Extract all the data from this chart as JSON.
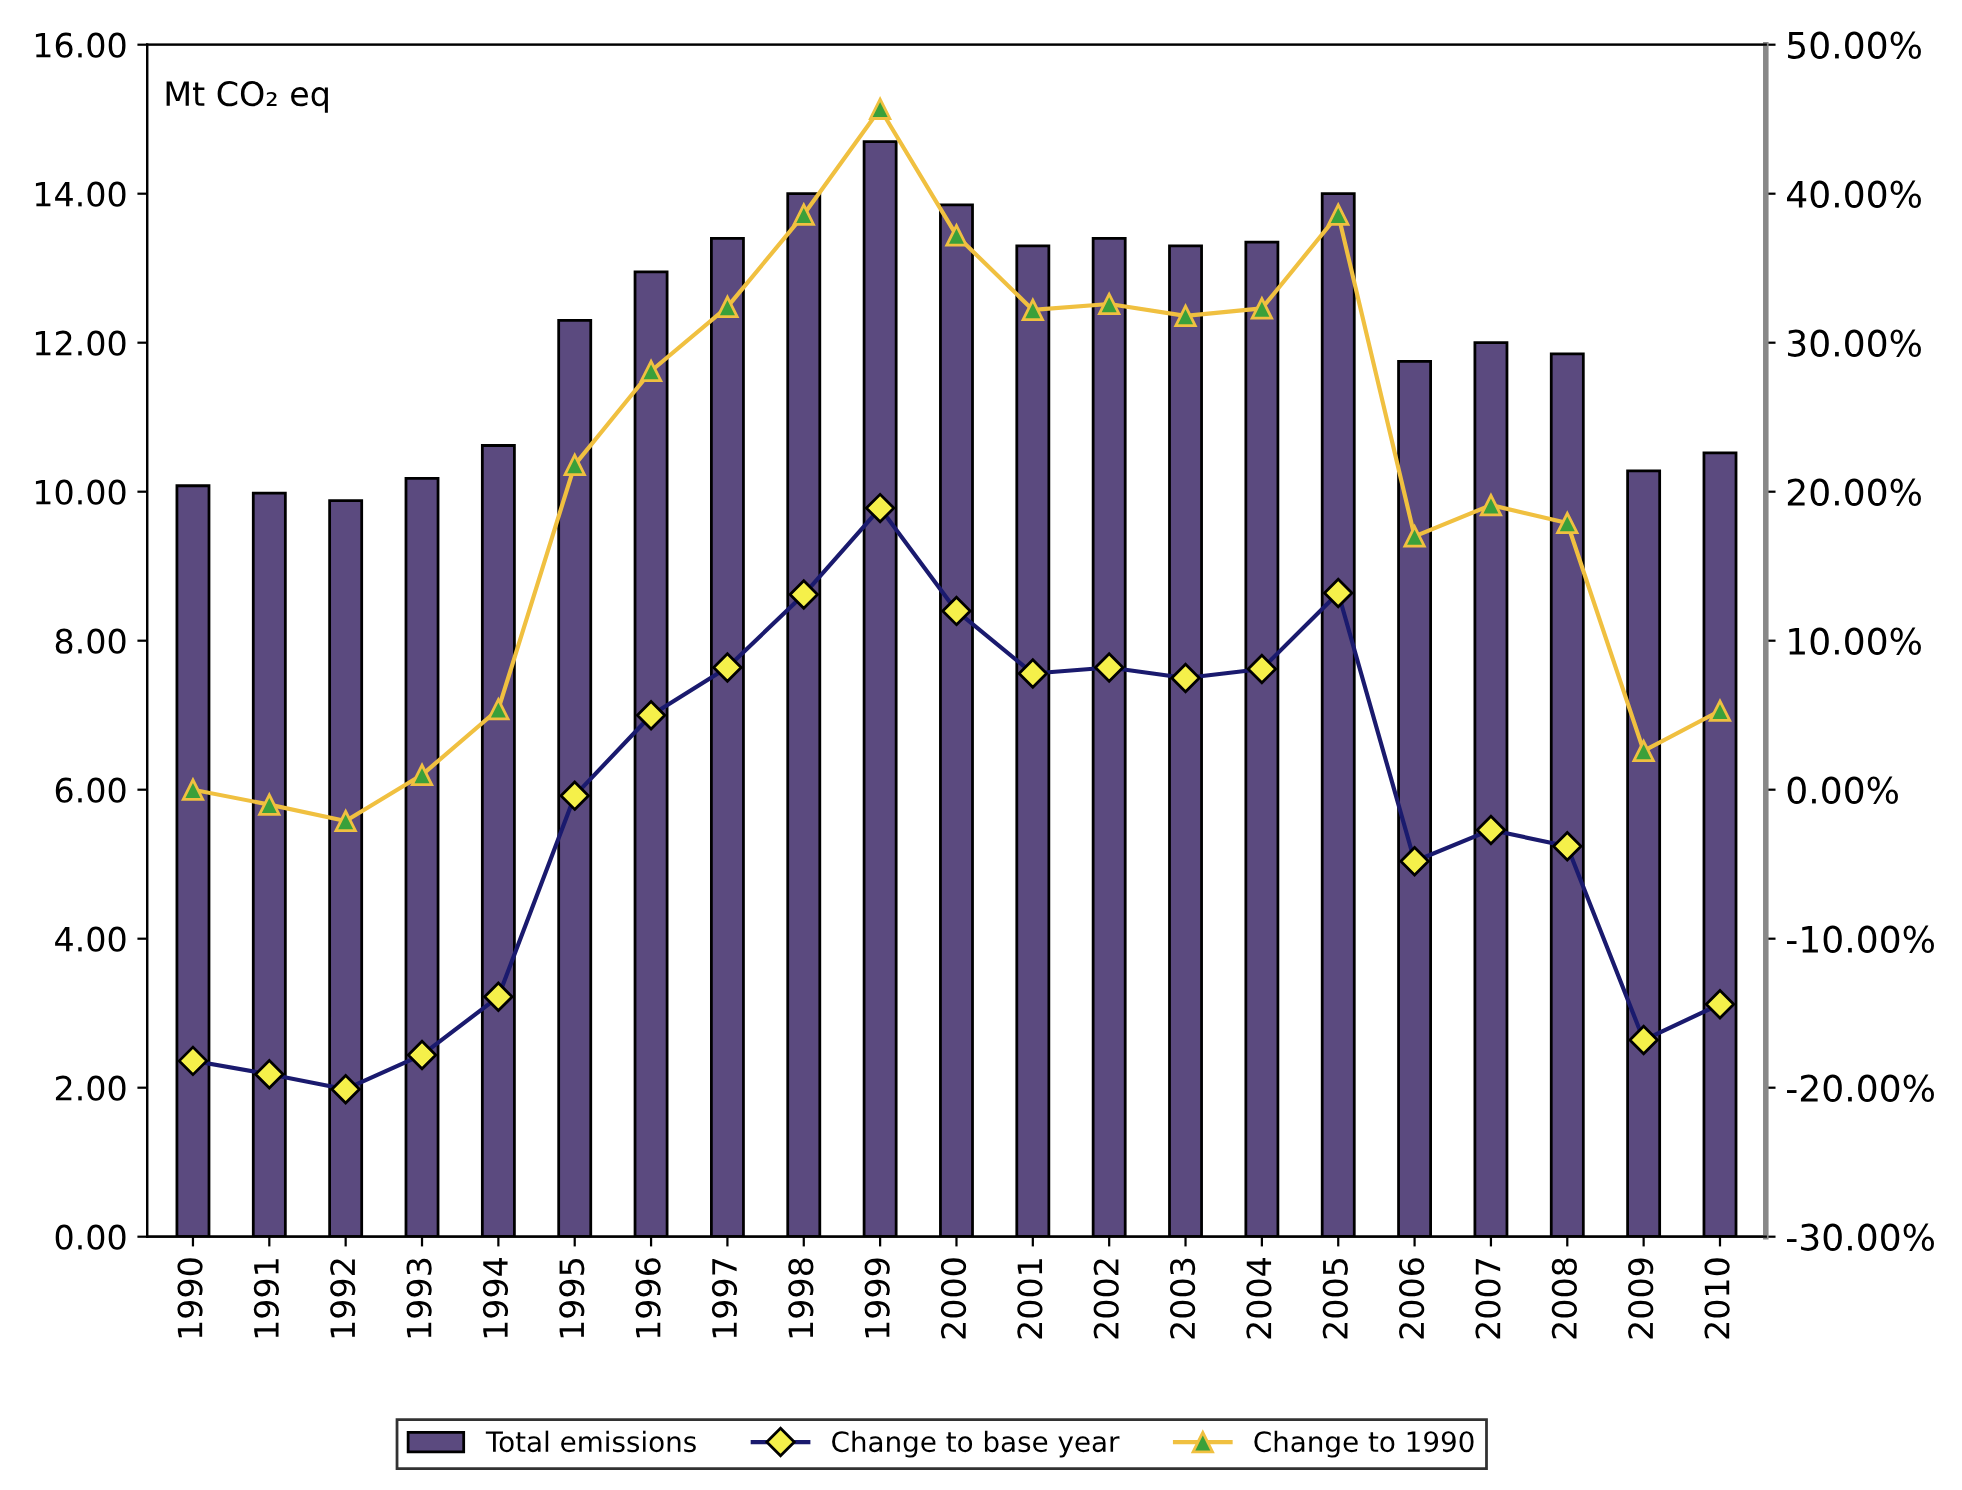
{
  "chart_data": {
    "type": "bar",
    "ylabel": "Mt CO₂ eq",
    "categories": [
      "1990",
      "1991",
      "1992",
      "1993",
      "1994",
      "1995",
      "1996",
      "1997",
      "1998",
      "1999",
      "2000",
      "2001",
      "2002",
      "2003",
      "2004",
      "2005",
      "2006",
      "2007",
      "2008",
      "2009",
      "2010"
    ],
    "series": [
      {
        "name": "Total emissions",
        "color": "#5b4a7f",
        "values": [
          10.08,
          9.98,
          9.88,
          10.18,
          10.62,
          12.3,
          12.95,
          13.4,
          14.0,
          14.7,
          13.85,
          13.3,
          13.4,
          13.3,
          13.35,
          14.0,
          11.75,
          12.0,
          11.85,
          10.28,
          10.52
        ]
      },
      {
        "name": "Change to base year",
        "type": "line",
        "axis": "y2",
        "color": "#1a1a6e",
        "marker": "diamond",
        "values": [
          -18.2,
          -19.1,
          -20.1,
          -17.8,
          -13.9,
          -0.4,
          5.0,
          8.2,
          13.1,
          18.9,
          12.0,
          7.8,
          8.2,
          7.5,
          8.1,
          13.2,
          -4.8,
          -2.7,
          -3.8,
          -16.8,
          -14.4
        ]
      },
      {
        "name": "Change to 1990",
        "type": "line",
        "axis": "y2",
        "color": "#f0c040",
        "marker": "triangle",
        "values": [
          0,
          -1.0,
          -2.1,
          1.0,
          5.4,
          21.8,
          28.1,
          32.4,
          38.6,
          45.7,
          37.2,
          32.2,
          32.6,
          31.8,
          32.3,
          38.6,
          17.0,
          19.1,
          17.9,
          2.6,
          5.3
        ]
      }
    ],
    "ylim": [
      0,
      16
    ],
    "yticks": [
      {
        "value": 0,
        "label": "0.00"
      },
      {
        "value": 2,
        "label": "2.00"
      },
      {
        "value": 4,
        "label": "4.00"
      },
      {
        "value": 6,
        "label": "6.00"
      },
      {
        "value": 8,
        "label": "8.00"
      },
      {
        "value": 10,
        "label": "10.00"
      },
      {
        "value": 12,
        "label": "12.00"
      },
      {
        "value": 14,
        "label": "14.00"
      },
      {
        "value": 16,
        "label": "16.00"
      }
    ],
    "y2lim": [
      -30,
      50
    ],
    "y2ticks": [
      {
        "value": -30,
        "label": "-30.00%"
      },
      {
        "value": -20,
        "label": "-20.00%"
      },
      {
        "value": -10,
        "label": "-10.00%"
      },
      {
        "value": 0,
        "label": "0.00%"
      },
      {
        "value": 10,
        "label": "10.00%"
      },
      {
        "value": 20,
        "label": "20.00%"
      },
      {
        "value": 30,
        "label": "30.00%"
      },
      {
        "value": 40,
        "label": "40.00%"
      },
      {
        "value": 50,
        "label": "50.00%"
      }
    ],
    "legend": "bottom",
    "grid": false
  }
}
